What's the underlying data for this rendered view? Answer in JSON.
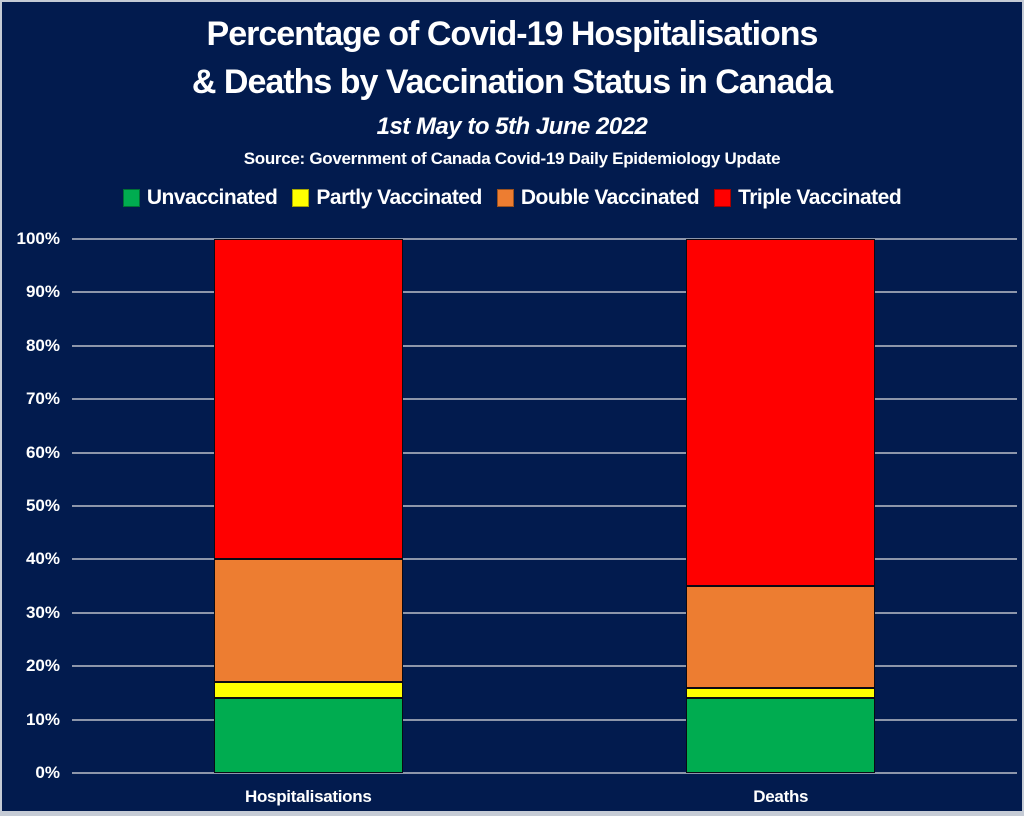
{
  "header": {
    "title_line1": "Percentage of Covid-19 Hospitalisations",
    "title_line2": "& Deaths by Vaccination Status in Canada",
    "subtitle": "1st May to 5th June 2022",
    "source": "Source: Government of Canada Covid-19 Daily Epidemiology Update"
  },
  "colors": {
    "background": "#021B4E",
    "frame_border": "#C5CBD5",
    "gridline": "#8D96AA",
    "text": "#FFFFFF",
    "segment_outline": "#0A0A14"
  },
  "chart_data": {
    "type": "bar",
    "stacked": true,
    "title": "Percentage of Covid-19 Hospitalisations & Deaths by Vaccination Status in Canada",
    "subtitle": "1st May to 5th June 2022",
    "source": "Source: Government of Canada Covid-19 Daily Epidemiology Update",
    "categories": [
      "Hospitalisations",
      "Deaths"
    ],
    "series": [
      {
        "name": "Unvaccinated",
        "color": "#00AC50",
        "values": [
          14,
          14
        ]
      },
      {
        "name": "Partly Vaccinated",
        "color": "#FFFF00",
        "values": [
          3,
          2
        ]
      },
      {
        "name": "Double Vaccinated",
        "color": "#ED7D31",
        "values": [
          23,
          19
        ]
      },
      {
        "name": "Triple Vaccinated",
        "color": "#FF0000",
        "values": [
          60,
          65
        ]
      }
    ],
    "xlabel": "",
    "ylabel": "",
    "ylim": [
      0,
      100
    ],
    "ytick_step": 10,
    "yticks": [
      "0%",
      "10%",
      "20%",
      "30%",
      "40%",
      "50%",
      "60%",
      "70%",
      "80%",
      "90%",
      "100%"
    ],
    "grid": true,
    "legend_position": "top"
  }
}
